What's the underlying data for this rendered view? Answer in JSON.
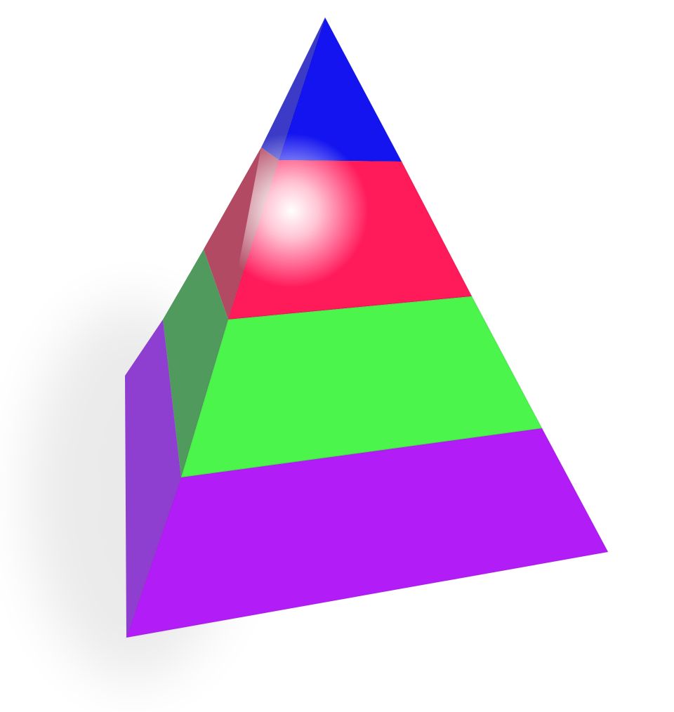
{
  "diagram": {
    "type": "3d-pyramid",
    "layer_count": 4,
    "layers": [
      {
        "order": 1,
        "position": "top",
        "front_color": "#1414f0",
        "side_color": "#3b3bc8"
      },
      {
        "order": 2,
        "position": "upper-middle",
        "front_color": "#ff1a5a",
        "side_color": "#b34a63"
      },
      {
        "order": 3,
        "position": "lower-middle",
        "front_color": "#4cf54c",
        "side_color": "#4f9a5c"
      },
      {
        "order": 4,
        "position": "bottom",
        "front_color": "#b21cf7",
        "side_color": "#8f3fd0"
      }
    ],
    "labels": []
  }
}
